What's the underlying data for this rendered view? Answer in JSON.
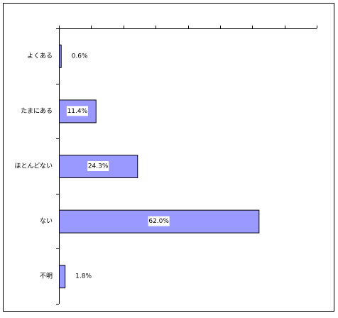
{
  "chart_data": {
    "type": "bar",
    "orientation": "horizontal",
    "categories": [
      "よくある",
      "たまにある",
      "ほとんどない",
      "ない",
      "不明"
    ],
    "values": [
      0.6,
      11.4,
      24.3,
      62.0,
      1.8
    ],
    "value_labels": [
      "0.6%",
      "11.4%",
      "24.3%",
      "62.0%",
      "1.8%"
    ],
    "color": "#9999ff",
    "xlim": [
      0,
      80
    ],
    "xticks": [
      0,
      10,
      20,
      30,
      40,
      50,
      60,
      70,
      80
    ]
  }
}
